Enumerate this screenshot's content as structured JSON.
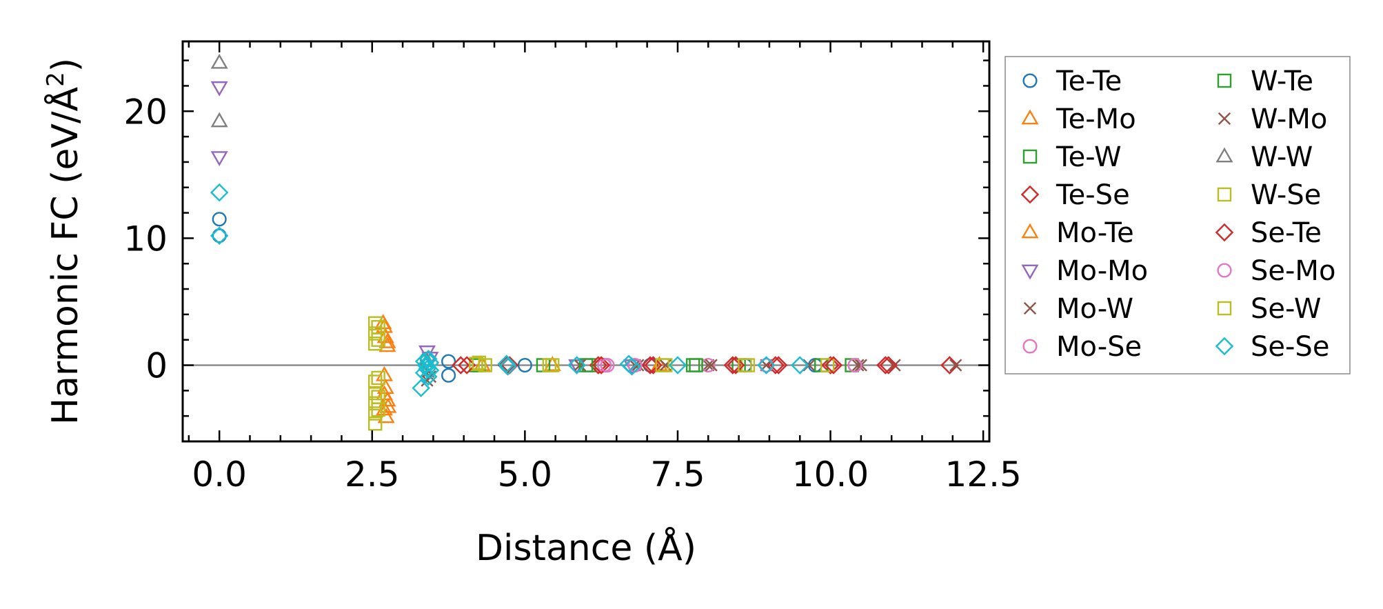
{
  "chart_data": {
    "type": "scatter",
    "title": "",
    "xlabel": "Distance (Å)",
    "ylabel_prefix": "Harmonic FC (eV/Å",
    "ylabel_sup": "2",
    "ylabel_suffix": ")",
    "xlim": [
      -0.6,
      12.6
    ],
    "ylim": [
      -6.0,
      25.5
    ],
    "xticks": [
      0.0,
      2.5,
      5.0,
      7.5,
      10.0,
      12.5
    ],
    "xtick_labels": [
      "0.0",
      "2.5",
      "5.0",
      "7.5",
      "10.0",
      "12.5"
    ],
    "yticks": [
      0,
      10,
      20
    ],
    "ytick_labels": [
      "0",
      "10",
      "20"
    ],
    "hline": 0,
    "legend_position": "outside-right",
    "series": [
      {
        "name": "Te-Te",
        "color": "#1f77b4",
        "marker": "circle",
        "points": [
          [
            0,
            11.5
          ],
          [
            0,
            10.2
          ],
          [
            3.4,
            0.5
          ],
          [
            3.75,
            0.3
          ],
          [
            3.75,
            -0.8
          ],
          [
            5.0,
            0
          ],
          [
            6.3,
            0
          ],
          [
            7.05,
            0
          ],
          [
            8.6,
            0
          ],
          [
            9.75,
            0
          ]
        ]
      },
      {
        "name": "Te-Mo",
        "color": "#ff7f0e",
        "marker": "triangle-up",
        "points": [
          [
            2.7,
            3.0
          ],
          [
            2.72,
            2.2
          ],
          [
            2.75,
            1.5
          ],
          [
            2.7,
            -0.8
          ],
          [
            2.72,
            -1.8
          ],
          [
            2.75,
            -2.8
          ],
          [
            2.7,
            -3.5
          ],
          [
            2.73,
            -4.1
          ],
          [
            4.3,
            0
          ],
          [
            5.45,
            0
          ],
          [
            7.2,
            0
          ]
        ]
      },
      {
        "name": "Te-W",
        "color": "#2ca02c",
        "marker": "square",
        "points": [
          [
            4.2,
            0
          ],
          [
            5.3,
            0
          ],
          [
            6.05,
            0
          ],
          [
            7.75,
            0
          ],
          [
            8.5,
            0
          ],
          [
            10.35,
            0
          ]
        ]
      },
      {
        "name": "Te-Se",
        "color": "#d62728",
        "marker": "diamond",
        "points": [
          [
            3.95,
            0
          ],
          [
            4.7,
            0
          ],
          [
            6.2,
            0
          ],
          [
            7.05,
            0
          ],
          [
            8.4,
            0
          ],
          [
            9.1,
            0
          ],
          [
            10.0,
            0
          ],
          [
            10.9,
            0
          ],
          [
            11.95,
            0
          ]
        ]
      },
      {
        "name": "Mo-Te",
        "color": "#ff7f0e",
        "marker": "triangle-up",
        "points": [
          [
            2.68,
            3.3
          ],
          [
            2.75,
            1.8
          ],
          [
            2.7,
            -2.3
          ],
          [
            2.76,
            -3.3
          ]
        ]
      },
      {
        "name": "Mo-Mo",
        "color": "#9467bd",
        "marker": "triangle-down",
        "points": [
          [
            0,
            21.9
          ],
          [
            0,
            16.4
          ],
          [
            3.4,
            1.1
          ],
          [
            3.45,
            0.6
          ],
          [
            5.85,
            0
          ],
          [
            6.75,
            0
          ]
        ]
      },
      {
        "name": "Mo-W",
        "color": "#8c564b",
        "marker": "x",
        "points": [
          [
            3.4,
            -1.2
          ],
          [
            3.42,
            -0.5
          ],
          [
            5.9,
            0
          ],
          [
            6.8,
            0
          ],
          [
            7.3,
            0
          ],
          [
            8.0,
            0
          ],
          [
            8.95,
            0
          ],
          [
            9.65,
            0
          ],
          [
            10.45,
            0
          ],
          [
            11.05,
            0
          ],
          [
            12.05,
            0
          ]
        ]
      },
      {
        "name": "Mo-Se",
        "color": "#e377c2",
        "marker": "circle",
        "points": [
          [
            6.3,
            0
          ],
          [
            6.8,
            0
          ],
          [
            8.0,
            0
          ],
          [
            8.95,
            0
          ],
          [
            10.4,
            0
          ]
        ]
      },
      {
        "name": "W-Te",
        "color": "#2ca02c",
        "marker": "square",
        "points": [
          [
            4.25,
            0
          ],
          [
            6.0,
            0
          ],
          [
            7.8,
            0
          ],
          [
            9.85,
            0
          ]
        ]
      },
      {
        "name": "W-Mo",
        "color": "#8c564b",
        "marker": "x",
        "points": [
          [
            3.45,
            -0.9
          ],
          [
            6.85,
            0
          ],
          [
            8.05,
            0
          ],
          [
            10.5,
            0
          ]
        ]
      },
      {
        "name": "W-W",
        "color": "#7f7f7f",
        "marker": "triangle-up",
        "points": [
          [
            0,
            23.8
          ],
          [
            0,
            19.2
          ],
          [
            3.4,
            0.3
          ]
        ]
      },
      {
        "name": "W-Se",
        "color": "#bcbd22",
        "marker": "square",
        "points": [
          [
            2.55,
            3.3
          ],
          [
            2.55,
            2.5
          ],
          [
            2.55,
            1.7
          ],
          [
            2.55,
            -1.3
          ],
          [
            2.55,
            -2.2
          ],
          [
            2.55,
            -3.0
          ],
          [
            2.55,
            -3.8
          ],
          [
            2.55,
            -4.6
          ],
          [
            4.2,
            0.1
          ],
          [
            4.35,
            0
          ],
          [
            5.4,
            0
          ],
          [
            7.3,
            0
          ],
          [
            8.65,
            0
          ],
          [
            9.95,
            0
          ]
        ]
      },
      {
        "name": "Se-Te",
        "color": "#d62728",
        "marker": "diamond",
        "points": [
          [
            4.05,
            0
          ],
          [
            4.75,
            0
          ],
          [
            6.25,
            0
          ],
          [
            7.1,
            0
          ],
          [
            8.45,
            0
          ],
          [
            9.15,
            0
          ],
          [
            10.05,
            0
          ],
          [
            10.95,
            0
          ]
        ]
      },
      {
        "name": "Se-Mo",
        "color": "#e377c2",
        "marker": "circle",
        "points": [
          [
            6.35,
            0
          ],
          [
            6.8,
            0
          ],
          [
            10.4,
            0
          ]
        ]
      },
      {
        "name": "Se-W",
        "color": "#bcbd22",
        "marker": "square",
        "points": [
          [
            2.6,
            3.0
          ],
          [
            2.6,
            2.0
          ],
          [
            2.6,
            -1.0
          ],
          [
            2.6,
            -2.5
          ],
          [
            2.6,
            -3.5
          ],
          [
            4.25,
            0.2
          ],
          [
            5.45,
            0
          ],
          [
            7.25,
            0
          ],
          [
            8.6,
            0
          ]
        ]
      },
      {
        "name": "Se-Se",
        "color": "#17becf",
        "marker": "diamond",
        "points": [
          [
            0,
            13.6
          ],
          [
            0,
            10.2
          ],
          [
            3.3,
            -1.8
          ],
          [
            3.35,
            -0.6
          ],
          [
            3.35,
            0.3
          ],
          [
            3.38,
            0
          ],
          [
            3.4,
            -0.3
          ],
          [
            3.42,
            0.5
          ],
          [
            3.42,
            -0.9
          ],
          [
            3.45,
            0.2
          ],
          [
            3.45,
            -0.4
          ],
          [
            4.7,
            0.1
          ],
          [
            4.72,
            -0.1
          ],
          [
            5.85,
            0
          ],
          [
            6.7,
            0.1
          ],
          [
            6.75,
            -0.1
          ],
          [
            7.5,
            0
          ],
          [
            8.95,
            0
          ],
          [
            9.5,
            0
          ]
        ]
      }
    ]
  }
}
